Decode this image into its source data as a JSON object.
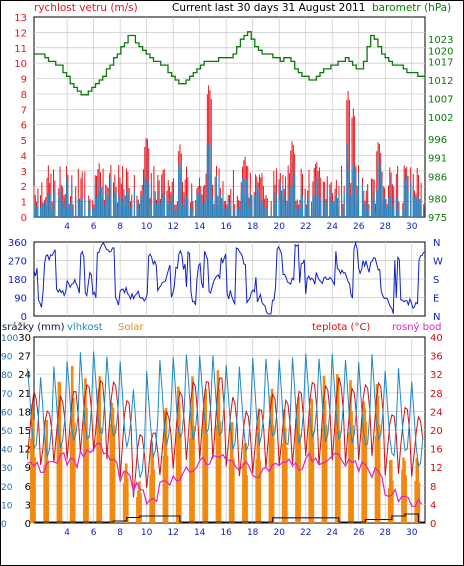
{
  "colors": {
    "wind": "#e8141c",
    "gust": "#1e88c8",
    "baro": "#0a7a0a",
    "dir": "#1020c8",
    "rain": "#101040",
    "hum": "#1e88c8",
    "solar": "#f08a10",
    "temp": "#d01010",
    "dew": "#e020c8",
    "grid": "#c8c8c8",
    "frame": "#000000"
  },
  "chart_data": [
    {
      "type": "bar",
      "title": "Current last 30 days 31 August 2011",
      "left_label": "rychlost vetru (m/s)",
      "right_label": "barometr (hPa)",
      "x_ticks": [
        "4",
        "6",
        "8",
        "10",
        "12",
        "14",
        "16",
        "18",
        "20",
        "22",
        "24",
        "26",
        "28",
        "30"
      ],
      "y_left_ticks": [
        "13",
        "12",
        "11",
        "10",
        "9",
        "8",
        "7",
        "6",
        "5",
        "4",
        "3",
        "2",
        "1",
        "0"
      ],
      "y_right_ticks": [
        "1023",
        "1020",
        "1017",
        "1012",
        "1007",
        "1002",
        "996",
        "991",
        "986",
        "980",
        "975"
      ],
      "ylim_left": [
        0,
        13
      ],
      "ylim_right": [
        975,
        1029
      ],
      "series": [
        {
          "key": "baro",
          "values": [
            1019,
            1019,
            1019,
            1018,
            1017,
            1017,
            1016,
            1016,
            1014,
            1013,
            1011,
            1010,
            1009,
            1008,
            1008,
            1009,
            1010,
            1011,
            1012,
            1013,
            1015,
            1016,
            1018,
            1019,
            1021,
            1022,
            1024,
            1024,
            1022,
            1021,
            1020,
            1019,
            1018,
            1017,
            1017,
            1016,
            1016,
            1014,
            1013,
            1012,
            1011,
            1011,
            1012,
            1013,
            1014,
            1015,
            1016,
            1017,
            1017,
            1017,
            1017,
            1018,
            1018,
            1018,
            1018,
            1019,
            1021,
            1023,
            1024,
            1025,
            1023,
            1021,
            1020,
            1019,
            1019,
            1019,
            1018,
            1018,
            1017,
            1018,
            1018,
            1017,
            1015,
            1014,
            1013,
            1013,
            1012,
            1012,
            1013,
            1014,
            1015,
            1015,
            1016,
            1016,
            1017,
            1017,
            1018,
            1017,
            1016,
            1015,
            1015,
            1017,
            1021,
            1024,
            1023,
            1021,
            1019,
            1018,
            1017,
            1016,
            1016,
            1016,
            1015,
            1014,
            1014,
            1014,
            1013,
            1013,
            1014
          ]
        },
        {
          "key": "wind_peaks",
          "values": [
            [
              1.2,
              3.9
            ],
            [
              6.4,
              3.6
            ],
            [
              10.0,
              5.4
            ],
            [
              12.5,
              4.8
            ],
            [
              14.7,
              8.7
            ],
            [
              17.4,
              4.1
            ],
            [
              21.0,
              5.1
            ],
            [
              22.8,
              3.8
            ],
            [
              25.2,
              8.2
            ],
            [
              25.6,
              7.1
            ],
            [
              27.5,
              5.1
            ],
            [
              29.6,
              3.4
            ]
          ]
        }
      ]
    },
    {
      "type": "line",
      "title": "",
      "y_ticks": [
        "360",
        "270",
        "180",
        "90",
        "0"
      ],
      "dir_labels": [
        "N",
        "W",
        "S",
        "E",
        "N"
      ],
      "ylim": [
        0,
        360
      ],
      "x_ticks": [
        "4",
        "6",
        "8",
        "10",
        "12",
        "14",
        "16",
        "18",
        "20",
        "22",
        "24",
        "26",
        "28",
        "30"
      ]
    },
    {
      "type": "line",
      "left_labels": [
        "srážky (mm)",
        "vlhkost",
        "Solar"
      ],
      "right_labels": [
        "teplota (°C)",
        "rosný bod"
      ],
      "y_left_rain_ticks": [
        "100",
        "90",
        "80",
        "70",
        "60",
        "50",
        "40",
        "30",
        "20",
        "10",
        "0"
      ],
      "y_left_hum_ticks": [
        "30",
        "27",
        "24",
        "21",
        "18",
        "15",
        "12",
        "9",
        "6",
        "3",
        "0"
      ],
      "y_left_solar_ticks": [
        "1003",
        "963",
        "860",
        "780",
        "630",
        "500",
        "400",
        "300",
        "200",
        "120",
        "0"
      ],
      "y_right_temp_ticks": [
        "40",
        "36",
        "32",
        "28",
        "24",
        "20",
        "16",
        "12",
        "8",
        "4",
        "0"
      ],
      "x_ticks": [
        "4",
        "6",
        "8",
        "10",
        "12",
        "14",
        "16",
        "18",
        "20",
        "22",
        "24",
        "26",
        "28",
        "30"
      ],
      "ylim_temp": [
        0,
        40
      ],
      "series": [
        {
          "key": "temp_max",
          "values": [
            28,
            24,
            27,
            29,
            30,
            31,
            31,
            27,
            19,
            20,
            24,
            28,
            30,
            31,
            32,
            27,
            24,
            25,
            28,
            26,
            29,
            31,
            30,
            31,
            29,
            30,
            30,
            24,
            25,
            23
          ]
        },
        {
          "key": "temp_min",
          "values": [
            14,
            12,
            13,
            14,
            15,
            15,
            14,
            10,
            6,
            8,
            10,
            12,
            13,
            14,
            14,
            12,
            10,
            11,
            12,
            12,
            13,
            14,
            13,
            14,
            13,
            14,
            14,
            10,
            11,
            10
          ]
        },
        {
          "key": "dew",
          "values": [
            13,
            12,
            14,
            13,
            15,
            16,
            14,
            10,
            8,
            5,
            8,
            10,
            12,
            13,
            14,
            13,
            12,
            11,
            12,
            13,
            12,
            14,
            13,
            14,
            13,
            12,
            11,
            6,
            5,
            4
          ]
        },
        {
          "key": "humidity",
          "values": [
            85,
            80,
            86,
            88,
            90,
            92,
            90,
            86,
            70,
            82,
            88,
            90,
            91,
            92,
            90,
            86,
            84,
            88,
            90,
            86,
            88,
            90,
            89,
            90,
            88,
            86,
            90,
            80,
            82,
            76
          ]
        },
        {
          "key": "solar_peak",
          "values": [
            600,
            500,
            700,
            780,
            720,
            760,
            700,
            300,
            200,
            400,
            600,
            700,
            720,
            760,
            760,
            500,
            420,
            560,
            680,
            600,
            700,
            720,
            700,
            720,
            680,
            700,
            700,
            300,
            380,
            360
          ]
        },
        {
          "key": "rain_total",
          "values": [
            0,
            0,
            0,
            0,
            0,
            0,
            3,
            10,
            4,
            0,
            0,
            0,
            0,
            0,
            0,
            0,
            0,
            0,
            12,
            0,
            0,
            0,
            0,
            0,
            0,
            7,
            0,
            10,
            6,
            2
          ]
        }
      ]
    }
  ]
}
